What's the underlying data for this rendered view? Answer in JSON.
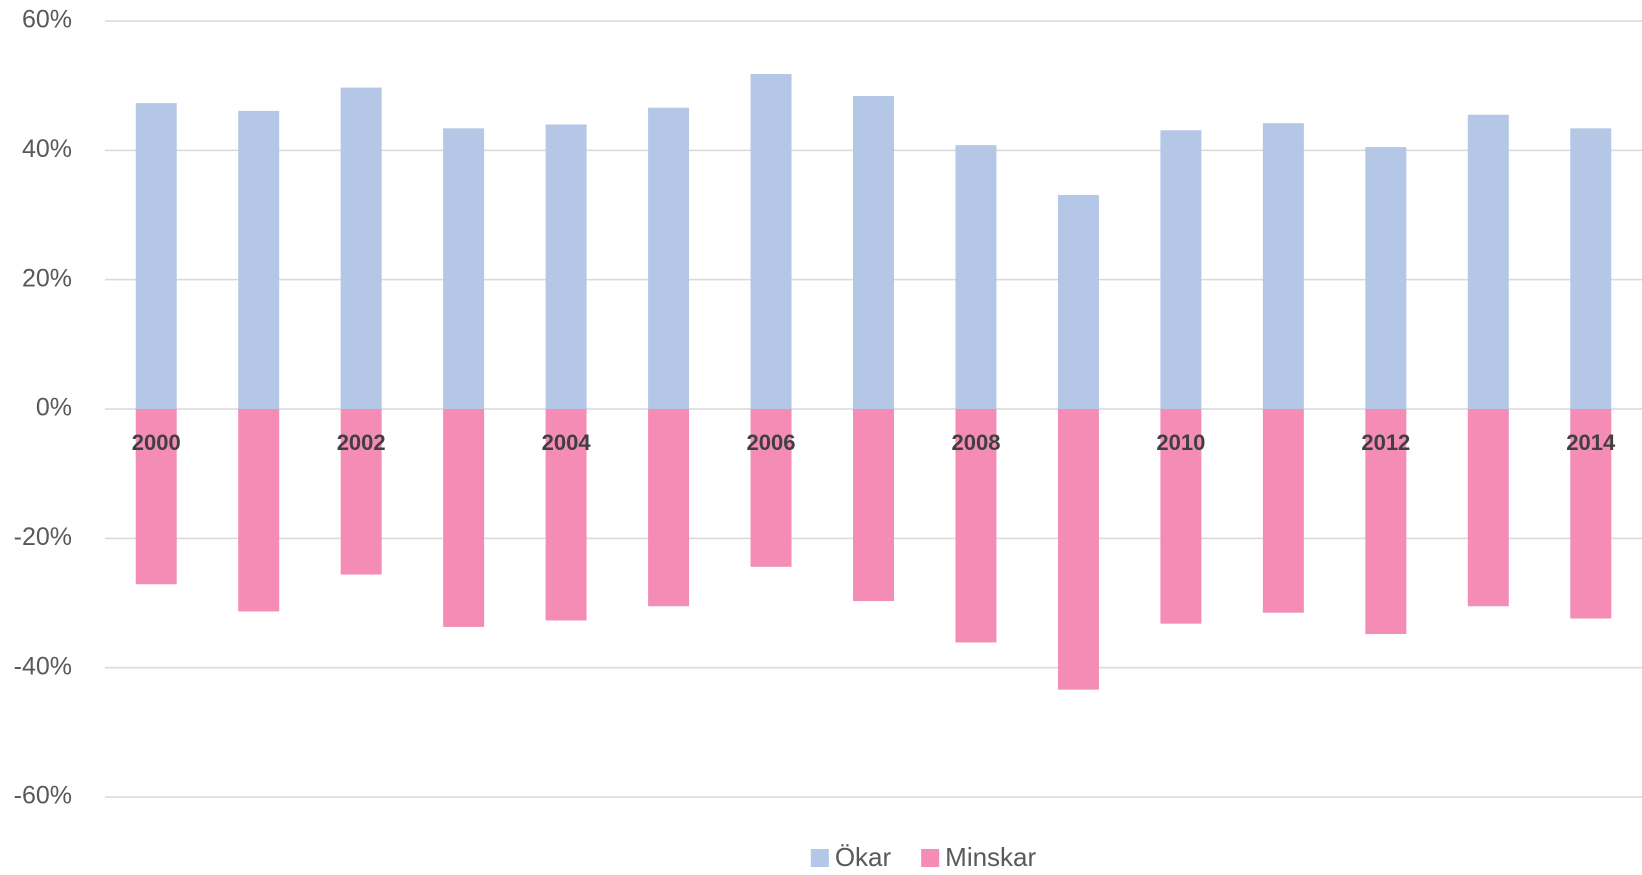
{
  "chart_data": {
    "type": "bar",
    "categories": [
      "2000",
      null,
      "2002",
      null,
      "2004",
      null,
      "2006",
      null,
      "2008",
      null,
      "2010",
      null,
      "2012",
      null,
      "2014"
    ],
    "series": [
      {
        "name": "Ökar",
        "color": "#b4c7e7",
        "values": [
          47.3,
          46.1,
          49.7,
          43.4,
          44.0,
          46.6,
          51.8,
          48.4,
          40.8,
          33.1,
          43.1,
          44.2,
          40.5,
          45.5,
          43.4
        ]
      },
      {
        "name": "Minskar",
        "color": "#f48cb6",
        "values": [
          -27.1,
          -31.3,
          -25.6,
          -33.7,
          -32.7,
          -30.5,
          -24.4,
          -29.7,
          -36.1,
          -43.4,
          -33.2,
          -31.5,
          -34.8,
          -30.5,
          -32.4
        ]
      }
    ],
    "ylim": [
      -60,
      60
    ],
    "yticks": [
      {
        "value": -60,
        "label": "-60%"
      },
      {
        "value": -40,
        "label": "-40%"
      },
      {
        "value": -20,
        "label": "-20%"
      },
      {
        "value": 0,
        "label": "0%"
      },
      {
        "value": 20,
        "label": "20%"
      },
      {
        "value": 40,
        "label": "40%"
      },
      {
        "value": 60,
        "label": "60%"
      }
    ],
    "grid": true,
    "legend": "bottom"
  }
}
